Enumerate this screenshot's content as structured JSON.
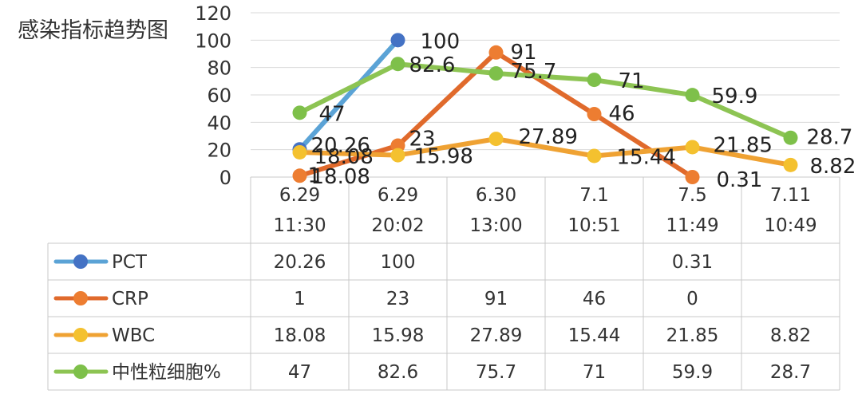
{
  "chart_data": {
    "type": "line",
    "title": "感染指标趋势图",
    "xlabel": "",
    "ylabel": "",
    "ylim": [
      0,
      120
    ],
    "yticks": [
      0,
      20,
      40,
      60,
      80,
      100,
      120
    ],
    "grid": true,
    "legend": "data-table-below",
    "categories": [
      [
        "6.29",
        "11:30"
      ],
      [
        "6.29",
        "20:02"
      ],
      [
        "6.30",
        "13:00"
      ],
      [
        "7.1",
        "10:51"
      ],
      [
        "7.5",
        "11:49"
      ],
      [
        "7.11",
        "10:49"
      ]
    ],
    "series": [
      {
        "name": "PCT",
        "color": "#4472C4",
        "lineColor": "#5BA3D6",
        "values": [
          20.26,
          100,
          null,
          null,
          0.31,
          null
        ],
        "labels": [
          "20.26",
          "100",
          "",
          "",
          "0.31",
          ""
        ],
        "plotted": [
          true,
          true,
          false,
          false,
          false,
          false
        ]
      },
      {
        "name": "CRP",
        "color": "#ED7D31",
        "lineColor": "#E06A2C",
        "values": [
          1,
          23,
          91,
          46,
          0,
          null
        ],
        "labels": [
          "1",
          "23",
          "91",
          "46",
          "",
          ""
        ],
        "plotted": [
          true,
          true,
          true,
          true,
          true,
          false
        ]
      },
      {
        "name": "WBC",
        "color": "#F4C12F",
        "lineColor": "#EFA233",
        "values": [
          18.08,
          15.98,
          27.89,
          15.44,
          21.85,
          8.82
        ],
        "labels": [
          "18.08",
          "15.98",
          "27.89",
          "15.44",
          "21.85",
          "8.82"
        ],
        "plotted": [
          true,
          true,
          true,
          true,
          true,
          true
        ]
      },
      {
        "name": "中性粒细胞%",
        "color": "#7EC04A",
        "lineColor": "#8DC453",
        "values": [
          47,
          82.6,
          75.7,
          71,
          59.9,
          28.7
        ],
        "labels": [
          "47",
          "82.6",
          "75.7",
          "71",
          "59.9",
          "28.7"
        ],
        "plotted": [
          true,
          true,
          true,
          true,
          true,
          true
        ]
      }
    ],
    "table": [
      [
        "20.26",
        "100",
        "",
        "",
        "0.31",
        ""
      ],
      [
        "1",
        "23",
        "91",
        "46",
        "0",
        ""
      ],
      [
        "18.08",
        "15.98",
        "27.89",
        "15.44",
        "21.85",
        "8.82"
      ],
      [
        "47",
        "82.6",
        "75.7",
        "71",
        "59.9",
        "28.7"
      ]
    ]
  }
}
